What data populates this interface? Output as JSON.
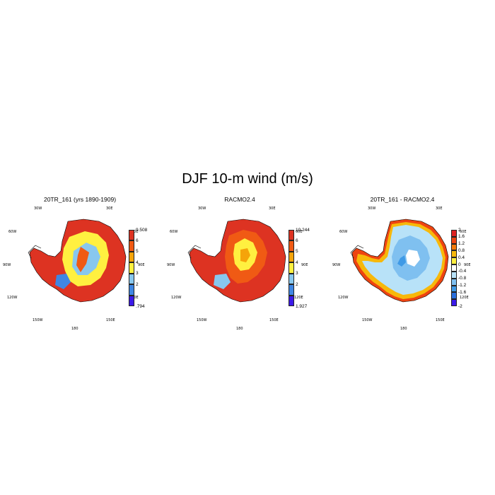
{
  "figure": {
    "title": "DJF 10-m wind (m/s)"
  },
  "lon_labels": {
    "w30": "30W",
    "e30": "30E",
    "w60": "60W",
    "e60": "60E",
    "w90": "90W",
    "e90": "90E",
    "w120": "120W",
    "e120": "120E",
    "w150": "150W",
    "e150": "150E",
    "s180": "180"
  },
  "panels": [
    {
      "title": "20TR_161 (yrs 1890-1909)",
      "colorbar": {
        "colors": [
          "#dd3322",
          "#f05a14",
          "#f5a40a",
          "#fff040",
          "#88c7ee",
          "#3f86e3",
          "#3b1ae8"
        ],
        "labels": [
          "9.508",
          "6",
          "5",
          "4",
          "3",
          "2",
          ".794"
        ]
      }
    },
    {
      "title": "RACMO2.4",
      "colorbar": {
        "colors": [
          "#dd3322",
          "#f05a14",
          "#f5a40a",
          "#fff040",
          "#88c7ee",
          "#3f86e3",
          "#3b1ae8"
        ],
        "labels": [
          "10.244",
          "6",
          "5",
          "4",
          "3",
          "2",
          "1.927"
        ]
      }
    },
    {
      "title": "20TR_161 - RACMO2.4",
      "colorbar": {
        "colors": [
          "#dd2222",
          "#ee4411",
          "#f57a0a",
          "#f7b80a",
          "#fff040",
          "#ffffff",
          "#b8e2f8",
          "#7fc0f0",
          "#3f9ae6",
          "#2a6fdd",
          "#3b1ae8"
        ],
        "labels": [
          "2",
          "1.6",
          "1.2",
          "0.8",
          "0.4",
          "0",
          "-0.4",
          "-0.8",
          "-1.2",
          "-1.6",
          "-2"
        ]
      }
    }
  ]
}
